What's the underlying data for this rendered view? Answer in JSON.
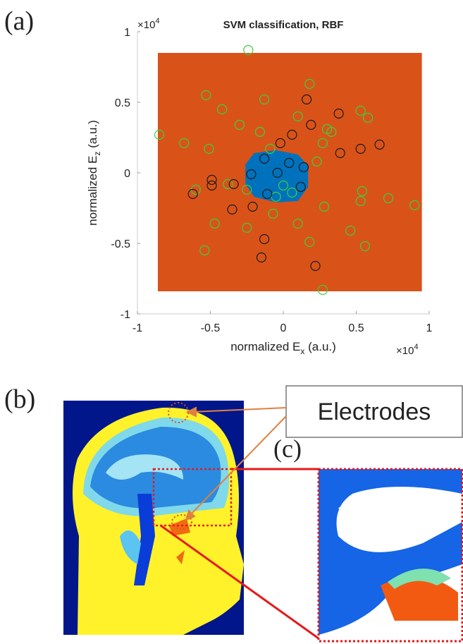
{
  "panels": {
    "a": "(a)",
    "b": "(b)",
    "c": "(c)"
  },
  "annotation": "Electrodes",
  "chart_data": {
    "type": "scatter",
    "title": "SVM classification, RBF",
    "xlabel": {
      "text": "normalized E",
      "subscript": "x",
      "suffix": " (a.u.)"
    },
    "ylabel": {
      "text": "normalized E",
      "subscript": "z",
      "suffix": " (a.u.)"
    },
    "x_multiplier": {
      "base": "×10",
      "exponent": "4"
    },
    "y_multiplier": {
      "base": "×10",
      "exponent": "4"
    },
    "xlim": [
      -1,
      1
    ],
    "ylim": [
      -1,
      1
    ],
    "xticks": [
      -1,
      -0.5,
      0,
      0.5,
      1
    ],
    "yticks": [
      -1,
      -0.5,
      0,
      0.5,
      1
    ],
    "regions": [
      {
        "color": "#d95319",
        "x": [
          -0.86,
          0.95,
          0.95,
          -0.86
        ],
        "y": [
          0.85,
          0.85,
          -0.84,
          -0.84
        ]
      },
      {
        "color": "#0072bd",
        "x": [
          -0.2,
          -0.05,
          0.1,
          0.17,
          0.17,
          0.1,
          -0.05,
          -0.2,
          -0.26,
          -0.26
        ],
        "y": [
          0.14,
          0.16,
          0.13,
          0.05,
          -0.1,
          -0.2,
          -0.21,
          -0.17,
          -0.08,
          0.06
        ]
      }
    ],
    "series": [
      {
        "color": "#3ccf3c",
        "x": [
          -0.24,
          -0.85,
          -0.53,
          -0.42,
          -0.13,
          -0.51,
          -0.3,
          -0.09,
          0.1,
          0.18,
          0.3,
          0.33,
          0.58,
          0.53,
          0.72,
          0.9,
          0.54,
          0.28,
          0.46,
          0.56,
          0.27,
          0.18,
          0.1,
          -0.07,
          -0.25,
          -0.47,
          -0.54,
          -0.6,
          -0.38,
          -0.25,
          0.06,
          -0.05,
          0,
          -0.16,
          0.23,
          0.27,
          -0.68,
          0.53
        ],
        "y": [
          0.87,
          0.27,
          0.55,
          0.45,
          0.52,
          0.17,
          0.34,
          0.17,
          0.4,
          0.63,
          0.31,
          0.29,
          0.39,
          0.44,
          -0.18,
          -0.23,
          -0.13,
          -0.24,
          -0.41,
          -0.52,
          -0.83,
          -0.49,
          -0.36,
          -0.29,
          -0.39,
          -0.36,
          -0.55,
          -0.12,
          -0.08,
          -0.12,
          -0.14,
          -0.17,
          -0.09,
          0.29,
          0.08,
          0.21,
          0.21,
          -0.2
        ]
      },
      {
        "color": "#1a1a1a",
        "x": [
          -0.13,
          -0.04,
          0.04,
          0.14,
          0.12,
          -0.22,
          -0.34,
          -0.49,
          -0.62,
          -0.35,
          -0.11,
          -0.13,
          -0.15,
          0.22,
          0.39,
          0.53,
          0.66,
          0.38,
          0.16,
          0.06,
          -0.02,
          -0.49,
          -0.21,
          0.19
        ],
        "y": [
          0.1,
          0,
          0.07,
          0.04,
          -0.1,
          -0.01,
          -0.08,
          -0.09,
          -0.15,
          -0.26,
          -0.15,
          -0.47,
          -0.6,
          -0.66,
          0.14,
          0.17,
          0.2,
          0.42,
          0.52,
          0.27,
          0.21,
          -0.05,
          -0.24,
          0.34
        ]
      }
    ]
  }
}
